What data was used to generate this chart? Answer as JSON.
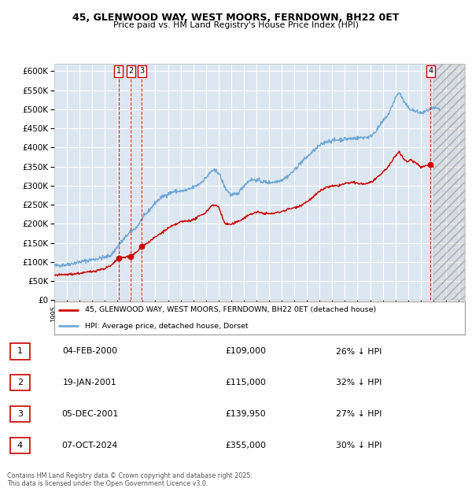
{
  "title": "45, GLENWOOD WAY, WEST MOORS, FERNDOWN, BH22 0ET",
  "subtitle": "Price paid vs. HM Land Registry's House Price Index (HPI)",
  "plot_bg_color": "#dce6f0",
  "grid_color": "#ffffff",
  "red_line_color": "#cc0000",
  "blue_line_color": "#6fa8d5",
  "ylim": [
    0,
    620000
  ],
  "yticks": [
    0,
    50000,
    100000,
    150000,
    200000,
    250000,
    300000,
    350000,
    400000,
    450000,
    500000,
    550000,
    600000
  ],
  "xlim": [
    1995.0,
    2027.5
  ],
  "transaction_points": [
    {
      "date_decimal": 2000.09,
      "price": 109000,
      "label": "1"
    },
    {
      "date_decimal": 2001.05,
      "price": 115000,
      "label": "2"
    },
    {
      "date_decimal": 2001.92,
      "price": 139950,
      "label": "3"
    },
    {
      "date_decimal": 2024.77,
      "price": 355000,
      "label": "4"
    }
  ],
  "legend_red_label": "45, GLENWOOD WAY, WEST MOORS, FERNDOWN, BH22 0ET (detached house)",
  "legend_blue_label": "HPI: Average price, detached house, Dorset",
  "table_rows": [
    {
      "num": "1",
      "date": "04-FEB-2000",
      "price": "£109,000",
      "hpi": "26% ↓ HPI"
    },
    {
      "num": "2",
      "date": "19-JAN-2001",
      "price": "£115,000",
      "hpi": "32% ↓ HPI"
    },
    {
      "num": "3",
      "date": "05-DEC-2001",
      "price": "£139,950",
      "hpi": "27% ↓ HPI"
    },
    {
      "num": "4",
      "date": "07-OCT-2024",
      "price": "£355,000",
      "hpi": "30% ↓ HPI"
    }
  ],
  "footer": "Contains HM Land Registry data © Crown copyright and database right 2025.\nThis data is licensed under the Open Government Licence v3.0.",
  "future_hatch_start": 2025.0,
  "hpi_anchors": [
    [
      1995.0,
      90000
    ],
    [
      1996.0,
      93000
    ],
    [
      1997.0,
      100000
    ],
    [
      1998.0,
      106000
    ],
    [
      1999.0,
      112000
    ],
    [
      1999.5,
      118000
    ],
    [
      2000.0,
      140000
    ],
    [
      2000.5,
      160000
    ],
    [
      2001.0,
      178000
    ],
    [
      2001.5,
      190000
    ],
    [
      2002.0,
      215000
    ],
    [
      2002.5,
      235000
    ],
    [
      2003.0,
      255000
    ],
    [
      2003.5,
      270000
    ],
    [
      2004.0,
      278000
    ],
    [
      2004.5,
      285000
    ],
    [
      2005.0,
      285000
    ],
    [
      2005.5,
      288000
    ],
    [
      2006.0,
      295000
    ],
    [
      2006.5,
      305000
    ],
    [
      2007.0,
      320000
    ],
    [
      2007.5,
      340000
    ],
    [
      2008.0,
      335000
    ],
    [
      2008.5,
      295000
    ],
    [
      2009.0,
      275000
    ],
    [
      2009.5,
      278000
    ],
    [
      2010.0,
      300000
    ],
    [
      2010.5,
      315000
    ],
    [
      2011.0,
      315000
    ],
    [
      2011.5,
      310000
    ],
    [
      2012.0,
      308000
    ],
    [
      2012.5,
      310000
    ],
    [
      2013.0,
      315000
    ],
    [
      2013.5,
      325000
    ],
    [
      2014.0,
      340000
    ],
    [
      2014.5,
      360000
    ],
    [
      2015.0,
      375000
    ],
    [
      2015.5,
      390000
    ],
    [
      2016.0,
      405000
    ],
    [
      2016.5,
      415000
    ],
    [
      2017.0,
      418000
    ],
    [
      2017.5,
      420000
    ],
    [
      2018.0,
      422000
    ],
    [
      2018.5,
      423000
    ],
    [
      2019.0,
      425000
    ],
    [
      2019.5,
      426000
    ],
    [
      2020.0,
      428000
    ],
    [
      2020.5,
      445000
    ],
    [
      2021.0,
      468000
    ],
    [
      2021.5,
      490000
    ],
    [
      2022.0,
      530000
    ],
    [
      2022.3,
      545000
    ],
    [
      2022.6,
      525000
    ],
    [
      2022.9,
      508000
    ],
    [
      2023.2,
      500000
    ],
    [
      2023.5,
      496000
    ],
    [
      2023.8,
      492000
    ],
    [
      2024.0,
      490000
    ],
    [
      2024.3,
      493000
    ],
    [
      2024.6,
      498000
    ],
    [
      2025.0,
      502000
    ],
    [
      2025.5,
      500000
    ]
  ],
  "red_anchors": [
    [
      1995.0,
      65000
    ],
    [
      1996.0,
      67000
    ],
    [
      1997.0,
      70000
    ],
    [
      1998.0,
      75000
    ],
    [
      1999.0,
      83000
    ],
    [
      1999.5,
      90000
    ],
    [
      2000.09,
      109000
    ],
    [
      2000.5,
      112000
    ],
    [
      2001.05,
      115000
    ],
    [
      2001.5,
      125000
    ],
    [
      2001.92,
      139950
    ],
    [
      2002.3,
      148000
    ],
    [
      2003.0,
      165000
    ],
    [
      2004.0,
      188000
    ],
    [
      2005.0,
      205000
    ],
    [
      2006.0,
      210000
    ],
    [
      2007.0,
      230000
    ],
    [
      2007.5,
      250000
    ],
    [
      2008.0,
      245000
    ],
    [
      2008.5,
      200000
    ],
    [
      2009.0,
      198000
    ],
    [
      2009.5,
      205000
    ],
    [
      2010.0,
      215000
    ],
    [
      2010.5,
      225000
    ],
    [
      2011.0,
      230000
    ],
    [
      2011.5,
      228000
    ],
    [
      2012.0,
      226000
    ],
    [
      2012.5,
      228000
    ],
    [
      2013.0,
      232000
    ],
    [
      2013.5,
      238000
    ],
    [
      2014.0,
      242000
    ],
    [
      2014.5,
      248000
    ],
    [
      2015.0,
      258000
    ],
    [
      2015.5,
      270000
    ],
    [
      2016.0,
      285000
    ],
    [
      2016.5,
      295000
    ],
    [
      2017.0,
      298000
    ],
    [
      2017.5,
      300000
    ],
    [
      2018.0,
      305000
    ],
    [
      2018.5,
      308000
    ],
    [
      2019.0,
      306000
    ],
    [
      2019.5,
      304000
    ],
    [
      2020.0,
      308000
    ],
    [
      2020.5,
      318000
    ],
    [
      2021.0,
      335000
    ],
    [
      2021.5,
      352000
    ],
    [
      2022.0,
      378000
    ],
    [
      2022.3,
      390000
    ],
    [
      2022.6,
      372000
    ],
    [
      2022.9,
      362000
    ],
    [
      2023.2,
      368000
    ],
    [
      2023.5,
      362000
    ],
    [
      2023.8,
      356000
    ],
    [
      2024.0,
      348000
    ],
    [
      2024.4,
      352000
    ],
    [
      2024.77,
      355000
    ],
    [
      2025.0,
      350000
    ]
  ]
}
